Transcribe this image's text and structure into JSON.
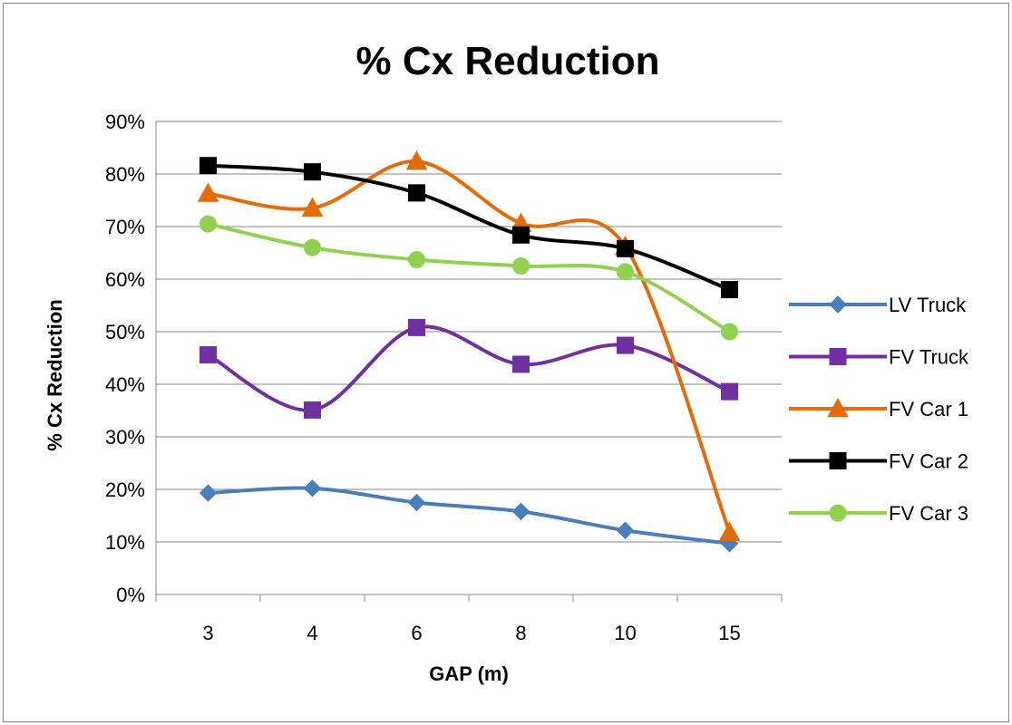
{
  "chart_data": {
    "type": "line",
    "title": "% Cx Reduction",
    "xlabel": "GAP (m)",
    "ylabel": "% Cx Reduction",
    "categories": [
      "3",
      "4",
      "6",
      "8",
      "10",
      "15"
    ],
    "ylim": [
      0,
      90
    ],
    "ytick_labels": [
      "0%",
      "10%",
      "20%",
      "30%",
      "40%",
      "50%",
      "60%",
      "70%",
      "80%",
      "90%"
    ],
    "grid": true,
    "legend_position": "right",
    "series": [
      {
        "name": "LV Truck",
        "color": "#4a7ebb",
        "marker": "diamond",
        "values": [
          19.3,
          20.2,
          17.5,
          15.8,
          12.2,
          9.7
        ]
      },
      {
        "name": "FV Truck",
        "color": "#7030a0",
        "marker": "square",
        "values": [
          45.6,
          35.1,
          50.8,
          43.8,
          47.4,
          38.6
        ]
      },
      {
        "name": "FV Car 1",
        "color": "#e36c09",
        "marker": "triangle",
        "values": [
          76.3,
          73.5,
          82.4,
          70.6,
          66.2,
          11.8
        ]
      },
      {
        "name": "FV Car 2",
        "color": "#000000",
        "marker": "square",
        "values": [
          81.6,
          80.4,
          76.4,
          68.4,
          65.8,
          58.0
        ]
      },
      {
        "name": "FV Car 3",
        "color": "#92d050",
        "marker": "circle",
        "values": [
          70.5,
          66.0,
          63.7,
          62.5,
          61.4,
          50.0
        ]
      }
    ]
  }
}
